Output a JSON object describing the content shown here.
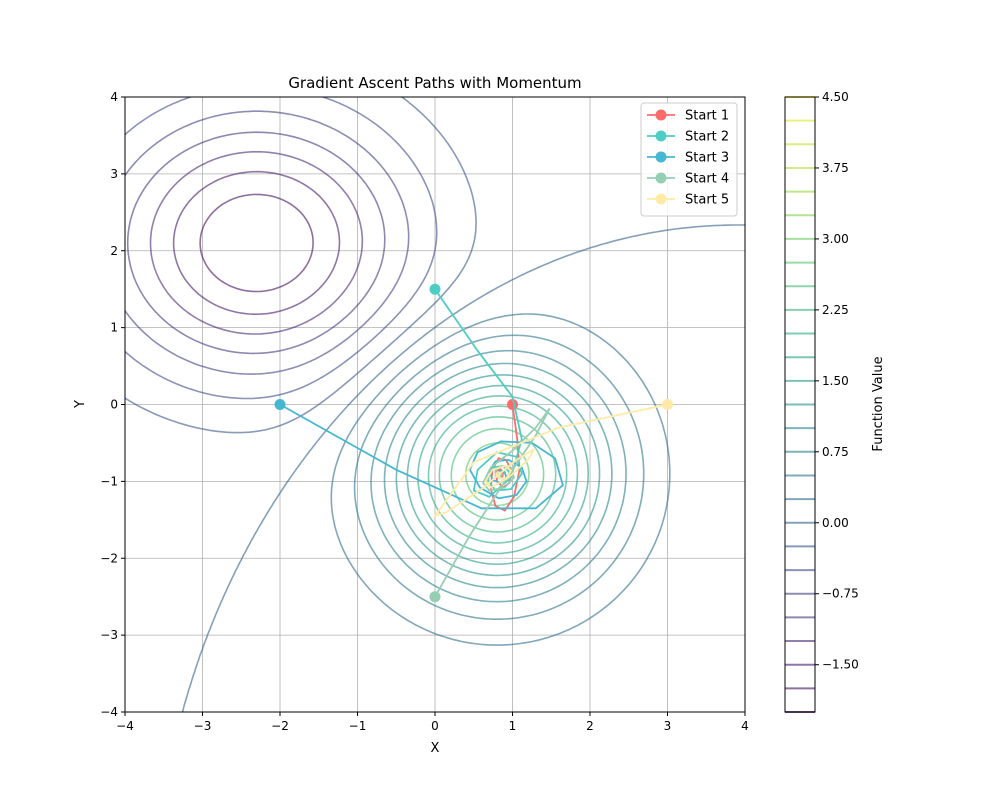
{
  "chart_data": {
    "type": "line",
    "title": "Gradient Ascent Paths with Momentum",
    "xlabel": "X",
    "ylabel": "Y",
    "xlim": [
      -4,
      4
    ],
    "ylim": [
      -4,
      4
    ],
    "xticks": [
      -4,
      -3,
      -2,
      -1,
      0,
      1,
      2,
      3,
      4
    ],
    "yticks": [
      -4,
      -3,
      -2,
      -1,
      0,
      1,
      2,
      3,
      4
    ],
    "xtick_labels": [
      "−4",
      "−3",
      "−2",
      "−1",
      "0",
      "1",
      "2",
      "3",
      "4"
    ],
    "ytick_labels": [
      "−4",
      "−3",
      "−2",
      "−1",
      "0",
      "1",
      "2",
      "3",
      "4"
    ],
    "grid": true,
    "legend_position": "top-right",
    "contour": {
      "function": "3*exp(-((x-0.8)^2 + (y+0.9)^2)/2) - 2*exp(-((x+2.3)^2/2 + (y-2.1)^2/1.5)*0.5)",
      "levels_min": -2.0,
      "levels_max": 4.5,
      "levels_step": 0.25,
      "colormap": "viridis",
      "alpha": 0.6
    },
    "series": [
      {
        "name": "Start 1",
        "color": "#ff6b6b",
        "start": [
          1,
          0
        ],
        "x": [
          1,
          1.06,
          1.09,
          1.02,
          0.9,
          0.78,
          0.72,
          0.74,
          0.82,
          0.92,
          0.98,
          0.96,
          0.88,
          0.8,
          0.79,
          0.84,
          0.88,
          0.87,
          0.83,
          0.81,
          0.82,
          0.83
        ],
        "y": [
          0,
          -0.45,
          -0.85,
          -1.2,
          -1.38,
          -1.32,
          -1.1,
          -0.85,
          -0.7,
          -0.72,
          -0.86,
          -1.02,
          -1.08,
          -1.0,
          -0.88,
          -0.84,
          -0.88,
          -0.94,
          -0.95,
          -0.92,
          -0.9,
          -0.9
        ]
      },
      {
        "name": "Start 2",
        "color": "#4ecdc4",
        "start": [
          0,
          1.5
        ],
        "x": [
          0,
          0.55,
          1.0,
          1.12,
          0.98,
          0.7,
          0.5,
          0.55,
          0.8,
          1.05,
          1.12,
          0.98,
          0.78,
          0.68,
          0.74,
          0.88,
          0.96,
          0.92,
          0.84,
          0.8,
          0.82
        ],
        "y": [
          1.5,
          0.7,
          0.1,
          -0.45,
          -0.95,
          -1.2,
          -1.12,
          -0.85,
          -0.62,
          -0.68,
          -0.9,
          -1.1,
          -1.12,
          -0.98,
          -0.82,
          -0.8,
          -0.88,
          -0.96,
          -0.96,
          -0.92,
          -0.9
        ]
      },
      {
        "name": "Start 3",
        "color": "#45b7d1",
        "start": [
          -2,
          0
        ],
        "x": [
          -2,
          -0.5,
          0.6,
          1.3,
          1.65,
          1.55,
          1.25,
          0.85,
          0.55,
          0.45,
          0.58,
          0.82,
          1.05,
          1.18,
          1.12,
          0.95,
          0.78,
          0.7,
          0.74,
          0.84,
          0.92,
          0.9,
          0.84,
          0.81,
          0.82
        ],
        "y": [
          0,
          -0.85,
          -1.35,
          -1.35,
          -1.05,
          -0.7,
          -0.5,
          -0.48,
          -0.62,
          -0.85,
          -1.08,
          -1.22,
          -1.18,
          -1.0,
          -0.82,
          -0.72,
          -0.74,
          -0.86,
          -0.98,
          -1.02,
          -0.96,
          -0.88,
          -0.86,
          -0.89,
          -0.9
        ]
      },
      {
        "name": "Start 4",
        "color": "#96ceb4",
        "start": [
          0,
          -2.5
        ],
        "x": [
          0,
          0.45,
          0.9,
          1.3,
          1.48,
          1.3,
          1.0,
          0.72,
          0.62,
          0.7,
          0.9,
          1.02,
          0.98,
          0.86,
          0.78,
          0.78,
          0.84,
          0.86,
          0.83,
          0.82
        ],
        "y": [
          -2.5,
          -1.7,
          -1.0,
          -0.4,
          -0.05,
          -0.3,
          -0.6,
          -0.82,
          -1.02,
          -1.12,
          -1.08,
          -0.95,
          -0.82,
          -0.8,
          -0.86,
          -0.94,
          -0.95,
          -0.91,
          -0.89,
          -0.9
        ]
      },
      {
        "name": "Start 5",
        "color": "#ffeaa7",
        "start": [
          3,
          0
        ],
        "x": [
          3,
          1.6,
          0.5,
          0.0,
          0.15,
          0.6,
          1.05,
          1.28,
          1.2,
          0.95,
          0.72,
          0.65,
          0.74,
          0.9,
          0.98,
          0.92,
          0.84,
          0.79,
          0.81,
          0.84,
          0.82
        ],
        "y": [
          0,
          -0.3,
          -0.75,
          -1.45,
          -1.4,
          -1.1,
          -0.72,
          -0.58,
          -0.72,
          -0.95,
          -1.08,
          -1.0,
          -0.85,
          -0.8,
          -0.86,
          -0.96,
          -0.96,
          -0.91,
          -0.88,
          -0.89,
          -0.9
        ]
      }
    ],
    "colorbar": {
      "label": "Function Value",
      "ticks": [
        4.5,
        3.75,
        3.0,
        2.25,
        1.5,
        0.75,
        0.0,
        -0.75,
        -1.5
      ],
      "tick_labels": [
        "4.50",
        "3.75",
        "3.00",
        "2.25",
        "1.50",
        "0.75",
        "0.00",
        "−0.75",
        "−1.50"
      ],
      "range": [
        -2.0,
        4.5
      ]
    }
  }
}
